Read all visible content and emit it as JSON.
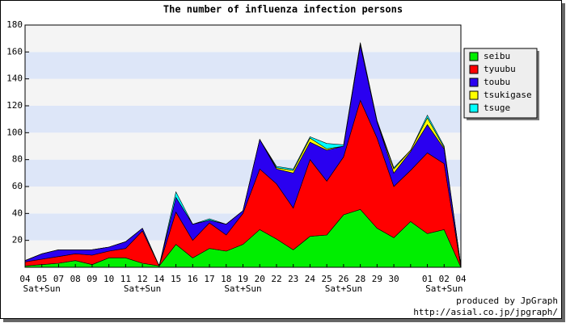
{
  "chart_data": {
    "type": "stacked_area",
    "title": "The number of influenza infection persons",
    "categories": [
      "04",
      "05",
      "07",
      "08",
      "09",
      "10",
      "11",
      "12",
      "14",
      "15",
      "16",
      "17",
      "18",
      "19",
      "20",
      "22",
      "23",
      "24",
      "25",
      "26",
      "28",
      "29",
      "30",
      null,
      "01",
      "02",
      "04"
    ],
    "sublabels": [
      null,
      "Sat+Sun",
      null,
      null,
      null,
      null,
      null,
      "Sat+Sun",
      null,
      null,
      null,
      null,
      null,
      "Sat+Sun",
      null,
      null,
      null,
      null,
      null,
      "Sat+Sun",
      null,
      null,
      null,
      null,
      null,
      "Sat+Sun",
      null
    ],
    "sublabel_color": "#dd0000",
    "series": [
      {
        "name": "seibu",
        "color": "#00ee00",
        "values": [
          1,
          2,
          3,
          5,
          2,
          7,
          7,
          3,
          1,
          17,
          7,
          14,
          12,
          17,
          28,
          21,
          13,
          23,
          24,
          39,
          43,
          29,
          22,
          34,
          25,
          28,
          0
        ]
      },
      {
        "name": "tyuubu",
        "color": "#ff0000",
        "values": [
          3,
          4,
          5,
          5,
          7,
          5,
          7,
          24,
          0,
          24,
          13,
          19,
          12,
          23,
          45,
          41,
          31,
          57,
          40,
          43,
          81,
          67,
          38,
          38,
          60,
          49,
          0
        ]
      },
      {
        "name": "toubu",
        "color": "#2a00f0",
        "values": [
          1,
          4,
          5,
          3,
          4,
          3,
          5,
          2,
          0,
          11,
          12,
          2,
          8,
          2,
          22,
          11,
          26,
          13,
          23,
          8,
          41,
          12,
          10,
          14,
          21,
          11,
          1
        ]
      },
      {
        "name": "tsukigase",
        "color": "#ffff00",
        "values": [
          0,
          0,
          0,
          0,
          0,
          0,
          0,
          0,
          0,
          0,
          0,
          0,
          0,
          0,
          0,
          1,
          2,
          3,
          1,
          0,
          1,
          0,
          3,
          1,
          5,
          1,
          0
        ]
      },
      {
        "name": "tsuge",
        "color": "#00ffff",
        "values": [
          0,
          0,
          0,
          0,
          0,
          0,
          0,
          0,
          0,
          4,
          0,
          1,
          0,
          0,
          0,
          1,
          1,
          1,
          4,
          1,
          1,
          1,
          1,
          0,
          2,
          1,
          0
        ]
      }
    ],
    "ylim": [
      0,
      180
    ],
    "yticks": [
      20,
      40,
      60,
      80,
      100,
      120,
      140,
      160,
      180
    ],
    "band_colors": [
      "#f4f4f4",
      "#dde6f8"
    ],
    "legend": "right",
    "footer": [
      "produced by JpGraph",
      "http://asial.co.jp/jpgraph/"
    ],
    "footer_color": "#0000cc"
  }
}
